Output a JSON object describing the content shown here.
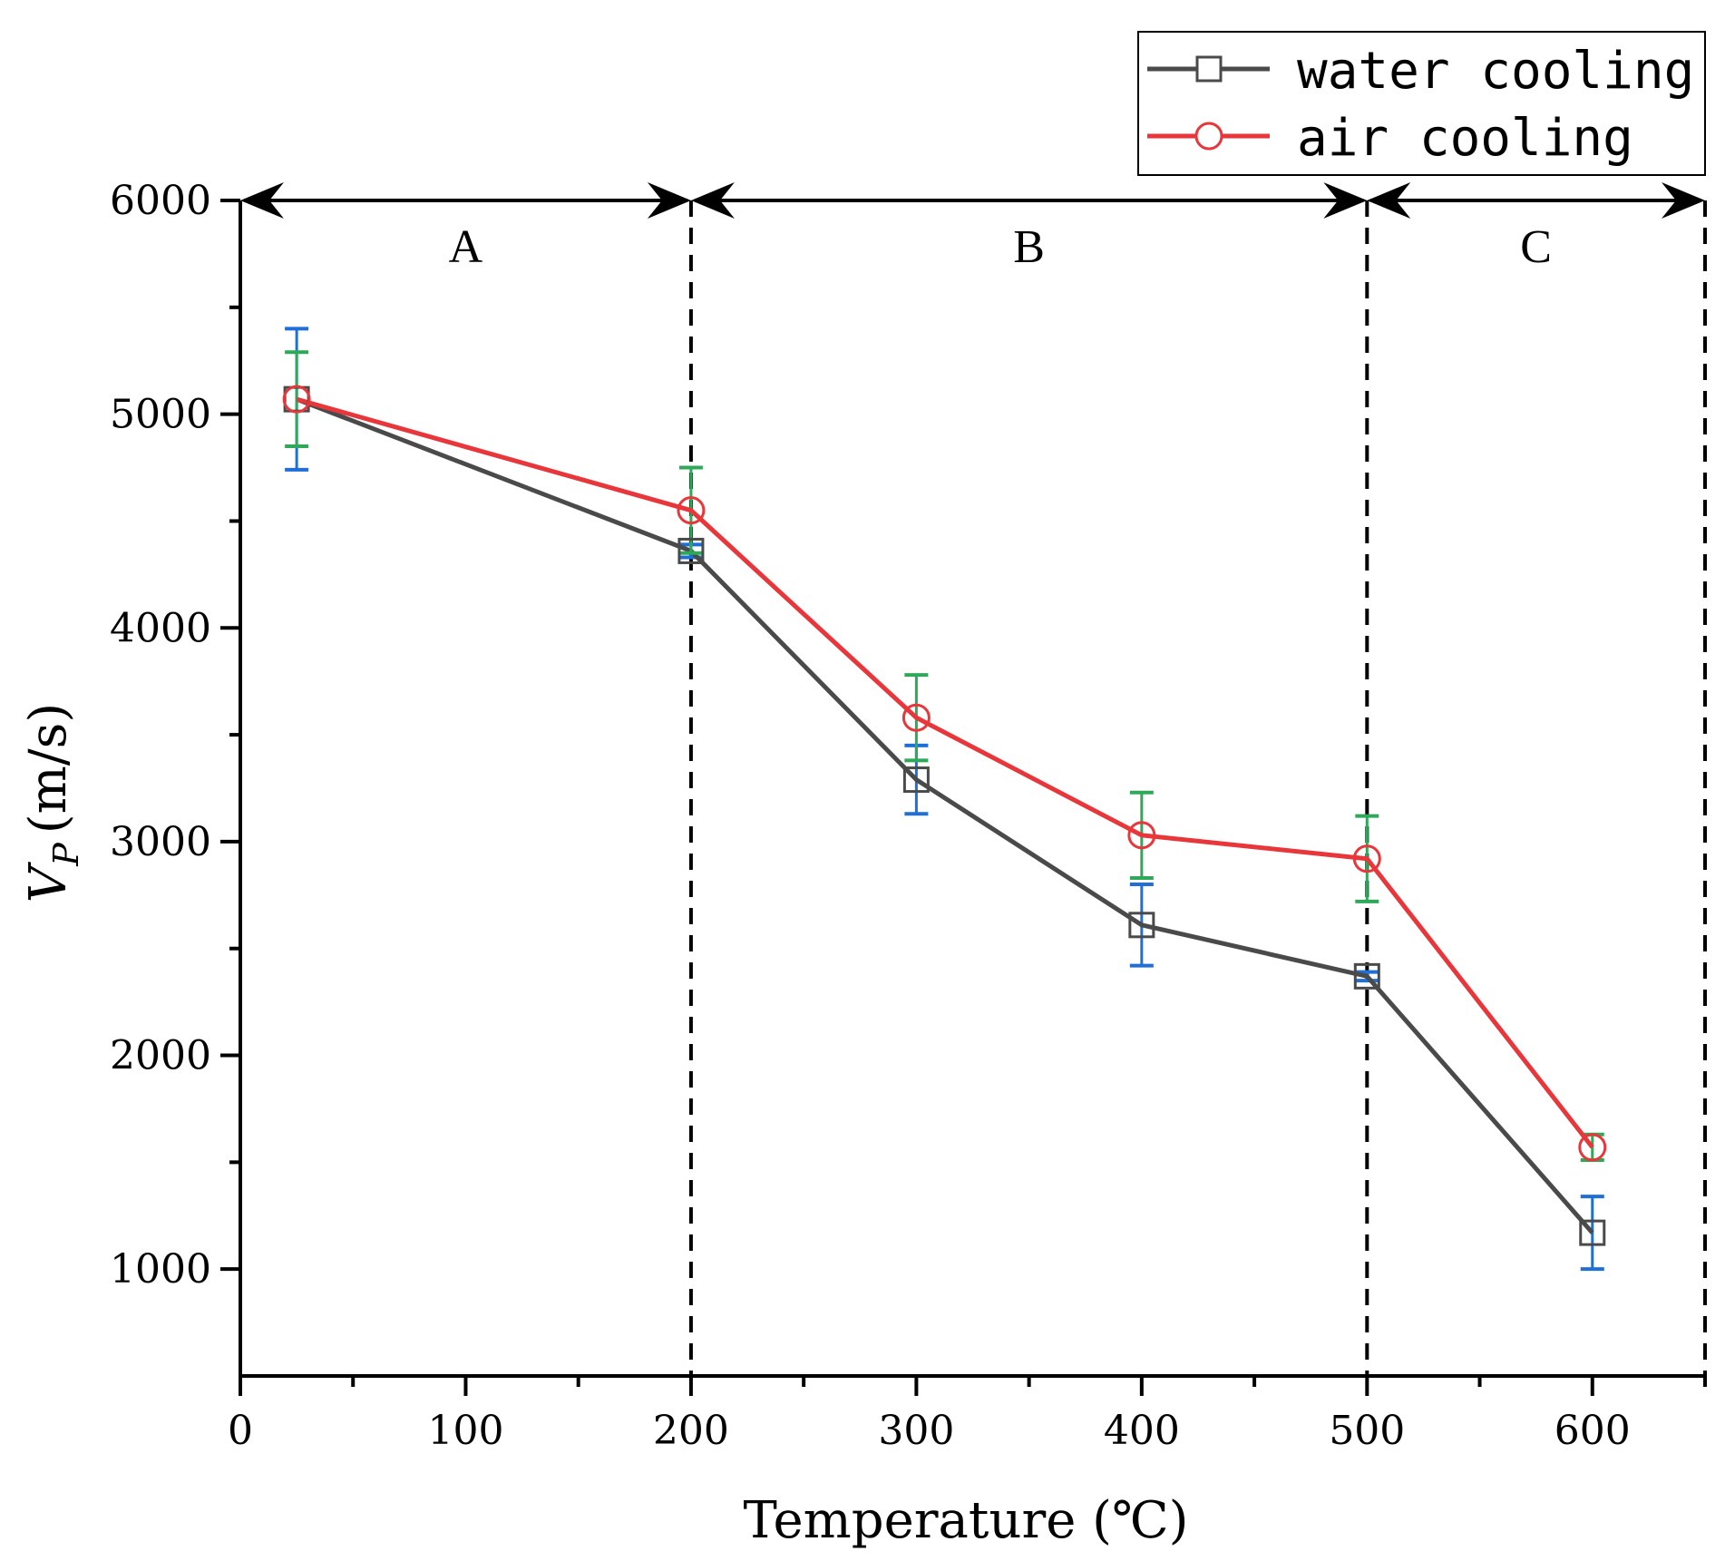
{
  "chart_data": {
    "type": "line",
    "xlabel": "Temperature (℃)",
    "ylabel_main": "V",
    "ylabel_sub": "P",
    "ylabel_unit": "(m/s)",
    "xlim": [
      0,
      650
    ],
    "ylim": [
      500,
      6000
    ],
    "xticks": [
      0,
      100,
      200,
      300,
      400,
      500,
      600
    ],
    "yticks": [
      1000,
      2000,
      3000,
      4000,
      5000,
      6000
    ],
    "series": [
      {
        "name": "water cooling",
        "color": "#4a4a4a",
        "marker": "square",
        "x": [
          25,
          200,
          300,
          400,
          500,
          600
        ],
        "y": [
          5070,
          4360,
          3290,
          2610,
          2370,
          1170
        ],
        "err_color": "#1f6fd6",
        "err": [
          330,
          30,
          160,
          190,
          20,
          170
        ]
      },
      {
        "name": "air cooling",
        "color": "#e8363a",
        "marker": "circle",
        "x": [
          25,
          200,
          300,
          400,
          500,
          600
        ],
        "y": [
          5070,
          4550,
          3580,
          3030,
          2920,
          1570
        ],
        "err_color": "#2fa85a",
        "err": [
          220,
          200,
          200,
          200,
          200,
          60
        ]
      }
    ],
    "regions": [
      {
        "label": "A",
        "from": 0,
        "to": 200
      },
      {
        "label": "B",
        "from": 200,
        "to": 500
      },
      {
        "label": "C",
        "from": 500,
        "to": 650
      }
    ],
    "dividers": [
      200,
      500,
      650
    ],
    "legend_position": "top-right"
  }
}
